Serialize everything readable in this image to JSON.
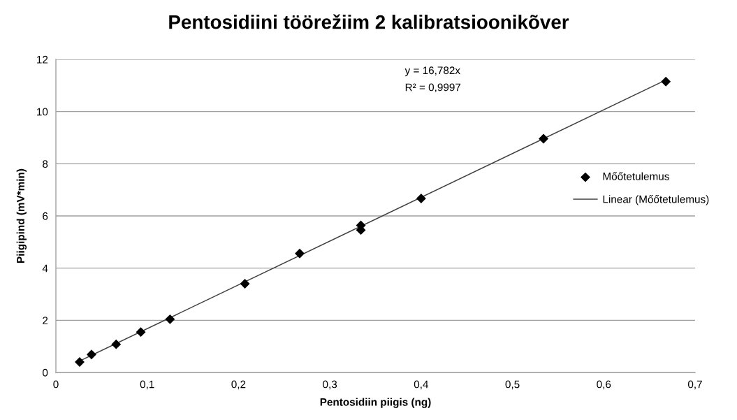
{
  "chart_data": {
    "type": "scatter",
    "title": "Pentosidiini töörežiim 2 kalibratsioonikõver",
    "xlabel": "Pentosidiin piigis (ng)",
    "ylabel": "Piigipind (mV*min)",
    "annotations": [
      "y = 16,782x",
      "R² = 0,9997"
    ],
    "series": [
      {
        "name": "Mőőtetulemus",
        "color": "#000000",
        "marker": "diamond",
        "x": [
          0.026,
          0.039,
          0.066,
          0.093,
          0.125,
          0.207,
          0.267,
          0.334,
          0.334,
          0.4,
          0.534,
          0.668
        ],
        "values": [
          0.4,
          0.69,
          1.08,
          1.55,
          2.04,
          3.4,
          4.56,
          5.64,
          5.46,
          6.67,
          8.96,
          11.15
        ]
      },
      {
        "name": "Linear (Mőőtetulemus)",
        "type": "line",
        "color": "#404040",
        "marker": "none",
        "line_style": "solid",
        "x": [
          0.026,
          0.668
        ],
        "values": [
          0.44,
          11.21
        ]
      }
    ],
    "xlim": [
      0,
      0.7
    ],
    "ylim": [
      0,
      12
    ],
    "xticks": [
      0,
      {
        "value": 0.1,
        "label": "0,1"
      },
      {
        "value": 0.2,
        "label": "0,2"
      },
      {
        "value": 0.3,
        "label": "0,3"
      },
      {
        "value": 0.4,
        "label": "0,4"
      },
      {
        "value": 0.5,
        "label": "0,5"
      },
      {
        "value": 0.6,
        "label": "0,6"
      },
      {
        "value": 0.7,
        "label": "0,7"
      }
    ],
    "yticks": [
      0,
      2,
      4,
      6,
      8,
      10,
      12
    ],
    "grid": "y",
    "legend": "right"
  }
}
